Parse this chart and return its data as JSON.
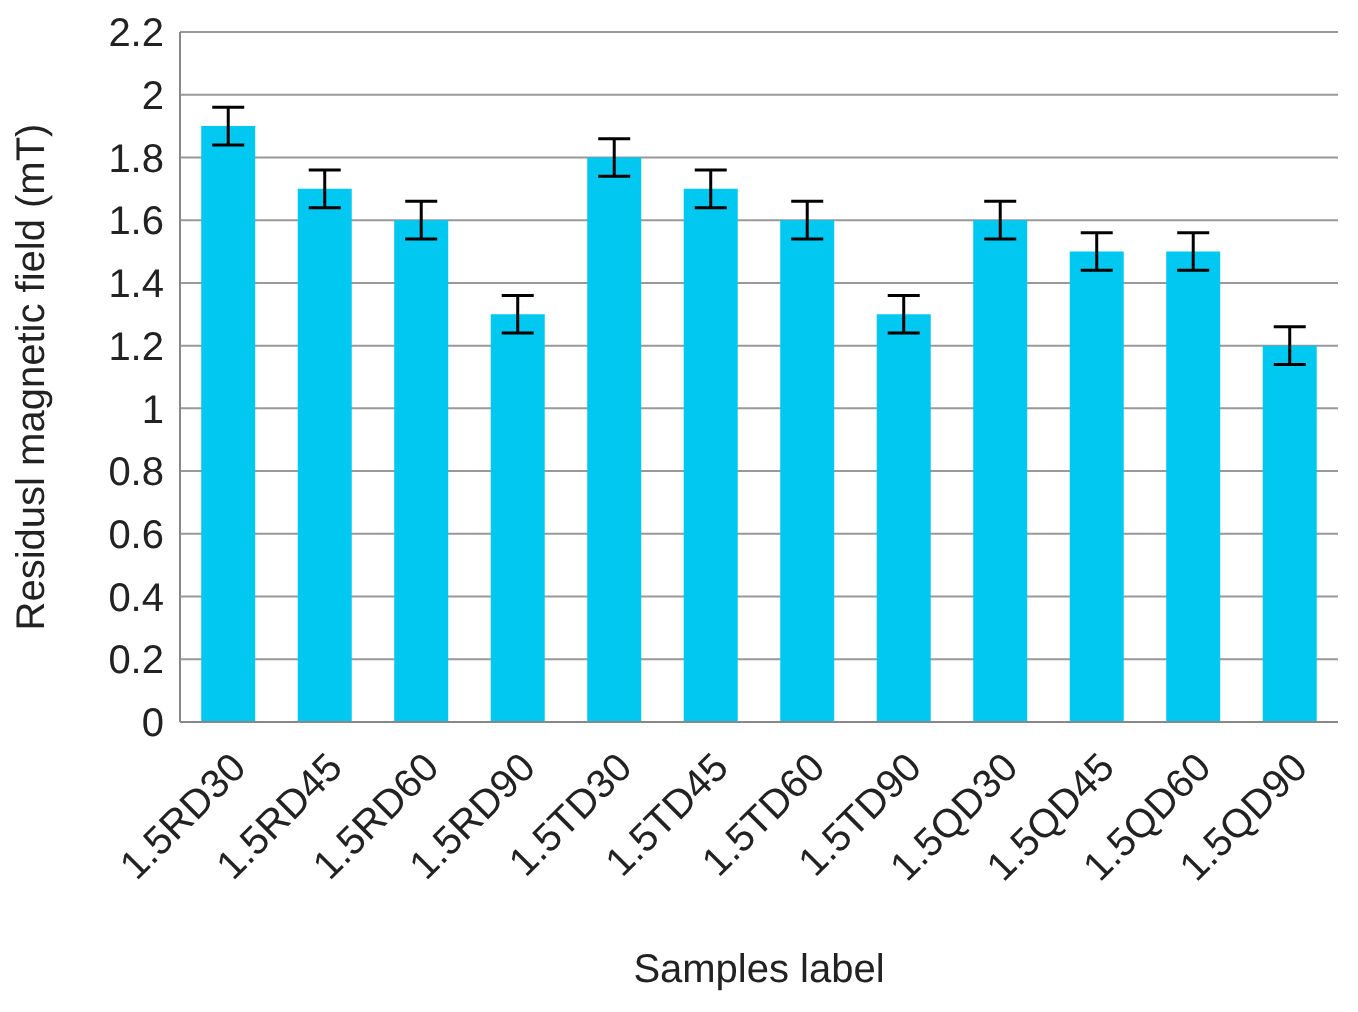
{
  "chart_data": {
    "type": "bar",
    "xlabel": "Samples label",
    "ylabel": "Residusl magnetic field (mT)",
    "categories": [
      "1.5RD30",
      "1.5RD45",
      "1.5RD60",
      "1.5RD90",
      "1.5TD30",
      "1.5TD45",
      "1.5TD60",
      "1.5TD90",
      "1.5QD30",
      "1.5QD45",
      "1.5QD60",
      "1.5QD90"
    ],
    "values": [
      1.9,
      1.7,
      1.6,
      1.3,
      1.8,
      1.7,
      1.6,
      1.3,
      1.6,
      1.5,
      1.5,
      1.2
    ],
    "errors": [
      0.06,
      0.06,
      0.06,
      0.06,
      0.06,
      0.06,
      0.06,
      0.06,
      0.06,
      0.06,
      0.06,
      0.06
    ],
    "color": "#00c8f0",
    "ylim": [
      0,
      2.2
    ],
    "yticks": [
      0,
      0.2,
      0.4,
      0.6,
      0.8,
      1,
      1.2,
      1.4,
      1.6,
      1.8,
      2,
      2.2
    ],
    "grid": "y",
    "legend": false
  }
}
